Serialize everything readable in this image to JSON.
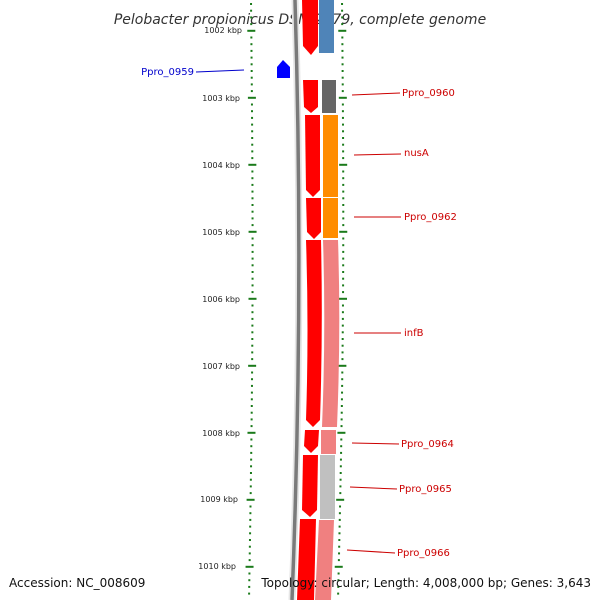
{
  "title": "Pelobacter propionicus DSM 2379, complete genome",
  "footer": {
    "accession": "Accession: NC_008609",
    "summary": "Topology: circular; Length: 4,008,000 bp; Genes: 3,643"
  },
  "colors": {
    "ticks": "#1a7a1a",
    "cds_red": "#ff0000",
    "backbone": "#808080",
    "label_red": "#cc0000",
    "label_blue": "#0000cc",
    "reverse_marker": "#0000ff"
  },
  "scale_labels": [
    "1002 kbp",
    "1003 kbp",
    "1004 kbp",
    "1005 kbp",
    "1006 kbp",
    "1007 kbp",
    "1008 kbp",
    "1009 kbp",
    "1010 kbp"
  ],
  "genes": [
    {
      "name": "Ppro_0959",
      "strand": "left",
      "color": "#0000cc"
    },
    {
      "name": "Ppro_0960",
      "strand": "right",
      "color": "#cc0000",
      "fill": "#666666"
    },
    {
      "name": "nusA",
      "strand": "right",
      "color": "#cc0000",
      "fill": "#ff8c00"
    },
    {
      "name": "Ppro_0962",
      "strand": "right",
      "color": "#cc0000",
      "fill": "#ff8c00"
    },
    {
      "name": "infB",
      "strand": "right",
      "color": "#cc0000",
      "fill": "#f08080"
    },
    {
      "name": "Ppro_0964",
      "strand": "right",
      "color": "#cc0000",
      "fill": "#f08080"
    },
    {
      "name": "Ppro_0965",
      "strand": "right",
      "color": "#cc0000",
      "fill": "#c0c0c0"
    },
    {
      "name": "Ppro_0966",
      "strand": "right",
      "color": "#cc0000",
      "fill": "#f08080"
    }
  ]
}
